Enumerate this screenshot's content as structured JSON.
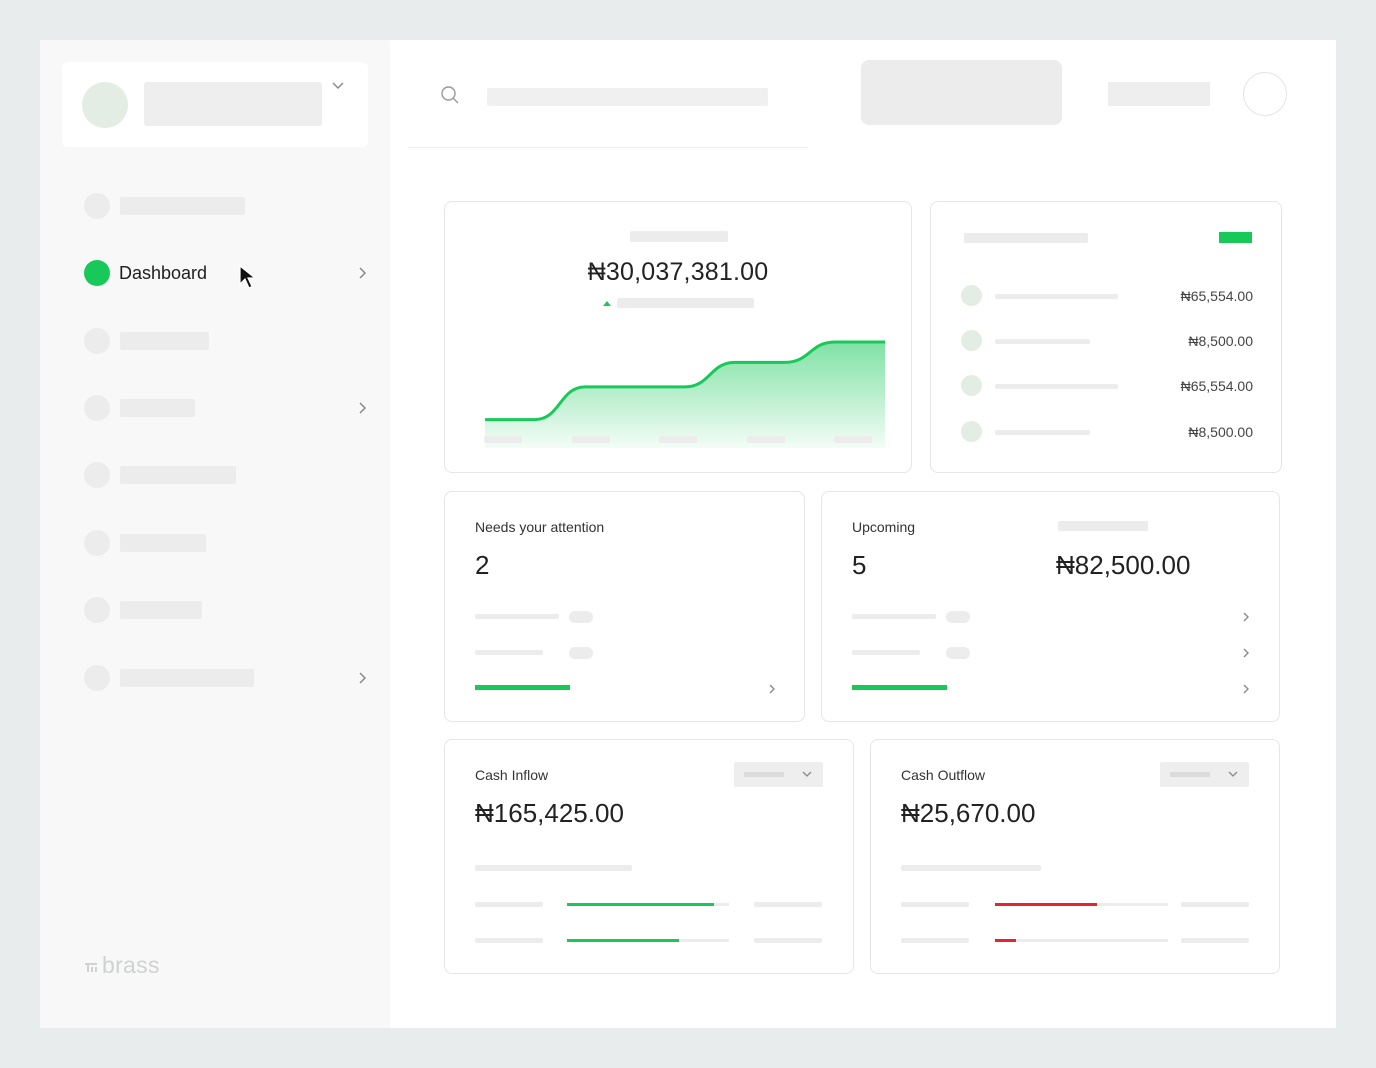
{
  "sidebar": {
    "nav": [
      {
        "label": "",
        "active": false
      },
      {
        "label": "Dashboard",
        "active": true
      },
      {
        "label": "",
        "active": false
      },
      {
        "label": "",
        "active": false
      },
      {
        "label": "",
        "active": false
      },
      {
        "label": "",
        "active": false
      },
      {
        "label": "",
        "active": false
      },
      {
        "label": "",
        "active": false
      }
    ],
    "brand": "brass"
  },
  "balance": {
    "amount": "₦30,037,381.00",
    "trend": "up",
    "chart_data": {
      "type": "area",
      "series": [
        {
          "values": [
            1,
            1,
            2.6,
            2.6,
            2.6,
            3.8,
            3.8,
            4.8,
            4.8
          ]
        }
      ],
      "color": "#18c95a"
    }
  },
  "transactions": {
    "rows": [
      {
        "value": "₦65,554.00"
      },
      {
        "value": "₦8,500.00"
      },
      {
        "value": "₦65,554.00"
      },
      {
        "value": "₦8,500.00"
      }
    ]
  },
  "attention": {
    "title": "Needs your attention",
    "count": "2",
    "progress": 0.28
  },
  "upcoming": {
    "title": "Upcoming",
    "count": "5",
    "total": "₦82,500.00",
    "progress": 0.22
  },
  "cash_inflow": {
    "title": "Cash Inflow",
    "amount": "₦165,425.00",
    "bars": [
      0.91,
      0.69
    ],
    "color": "#18c95a"
  },
  "cash_outflow": {
    "title": "Cash Outflow",
    "amount": "₦25,670.00",
    "bars": [
      0.59,
      0.12
    ],
    "color": "#e5242f"
  }
}
